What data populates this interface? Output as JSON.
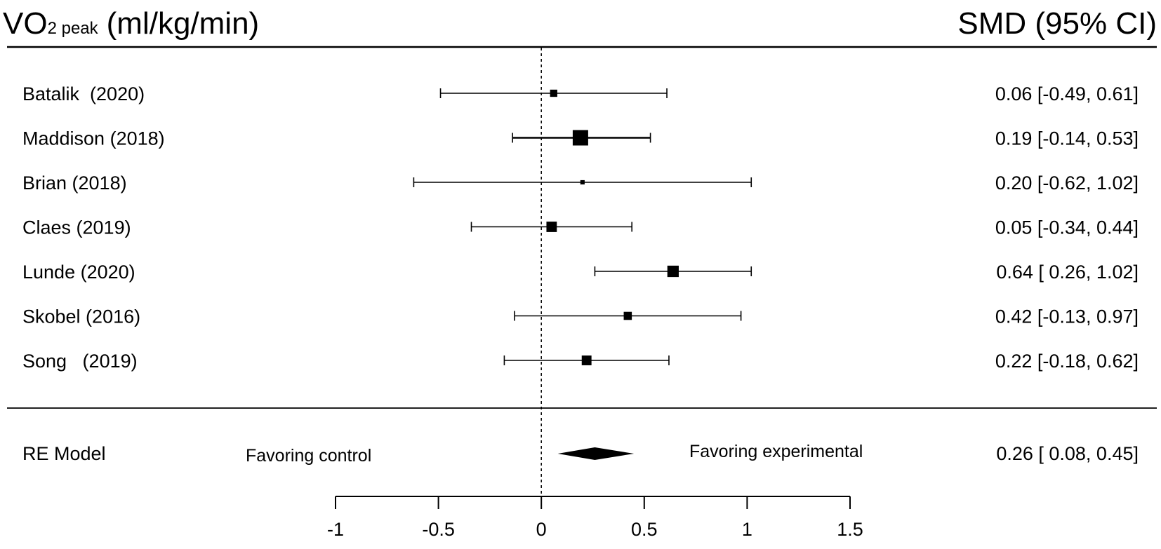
{
  "chart_data": {
    "type": "forest",
    "title_main": "VO",
    "title_sub": "2 peak",
    "title_unit": "(ml/kg/min)",
    "estimate_header": "SMD (95% CI)",
    "studies": [
      {
        "label": "Batalik  (2020)",
        "smd": 0.06,
        "lower": -0.49,
        "upper": 0.61,
        "ci_text": "0.06 [-0.49, 0.61]",
        "weight": 0.35
      },
      {
        "label": "Maddison (2018)",
        "smd": 0.19,
        "lower": -0.14,
        "upper": 0.53,
        "ci_text": "0.19 [-0.14, 0.53]",
        "weight": 1.0
      },
      {
        "label": "Brian (2018)",
        "smd": 0.2,
        "lower": -0.62,
        "upper": 1.02,
        "ci_text": "0.20 [-0.62, 1.02]",
        "weight": 0.12
      },
      {
        "label": "Claes (2019)",
        "smd": 0.05,
        "lower": -0.34,
        "upper": 0.44,
        "ci_text": "0.05 [-0.34, 0.44]",
        "weight": 0.6
      },
      {
        "label": "Lunde (2020)",
        "smd": 0.64,
        "lower": 0.26,
        "upper": 1.02,
        "ci_text": "0.64 [ 0.26, 1.02]",
        "weight": 0.68
      },
      {
        "label": "Skobel (2016)",
        "smd": 0.42,
        "lower": -0.13,
        "upper": 0.97,
        "ci_text": "0.42 [-0.13, 0.97]",
        "weight": 0.42
      },
      {
        "label": "Song   (2019)",
        "smd": 0.22,
        "lower": -0.18,
        "upper": 0.62,
        "ci_text": "0.22 [-0.18, 0.62]",
        "weight": 0.55
      }
    ],
    "summary": {
      "label": "RE Model",
      "smd": 0.26,
      "lower": 0.08,
      "upper": 0.45,
      "ci_text": "0.26 [ 0.08, 0.45]"
    },
    "favoring_left": "Favoring control",
    "favoring_right": "Favoring experimental",
    "x_ticks": [
      -1,
      -0.5,
      0,
      0.5,
      1,
      1.5
    ],
    "x_tick_labels": [
      "-1",
      "-0.5",
      "0",
      "0.5",
      "1",
      "1.5"
    ],
    "xlim": [
      -1,
      1.5
    ],
    "reference_line": 0,
    "grid": false
  }
}
